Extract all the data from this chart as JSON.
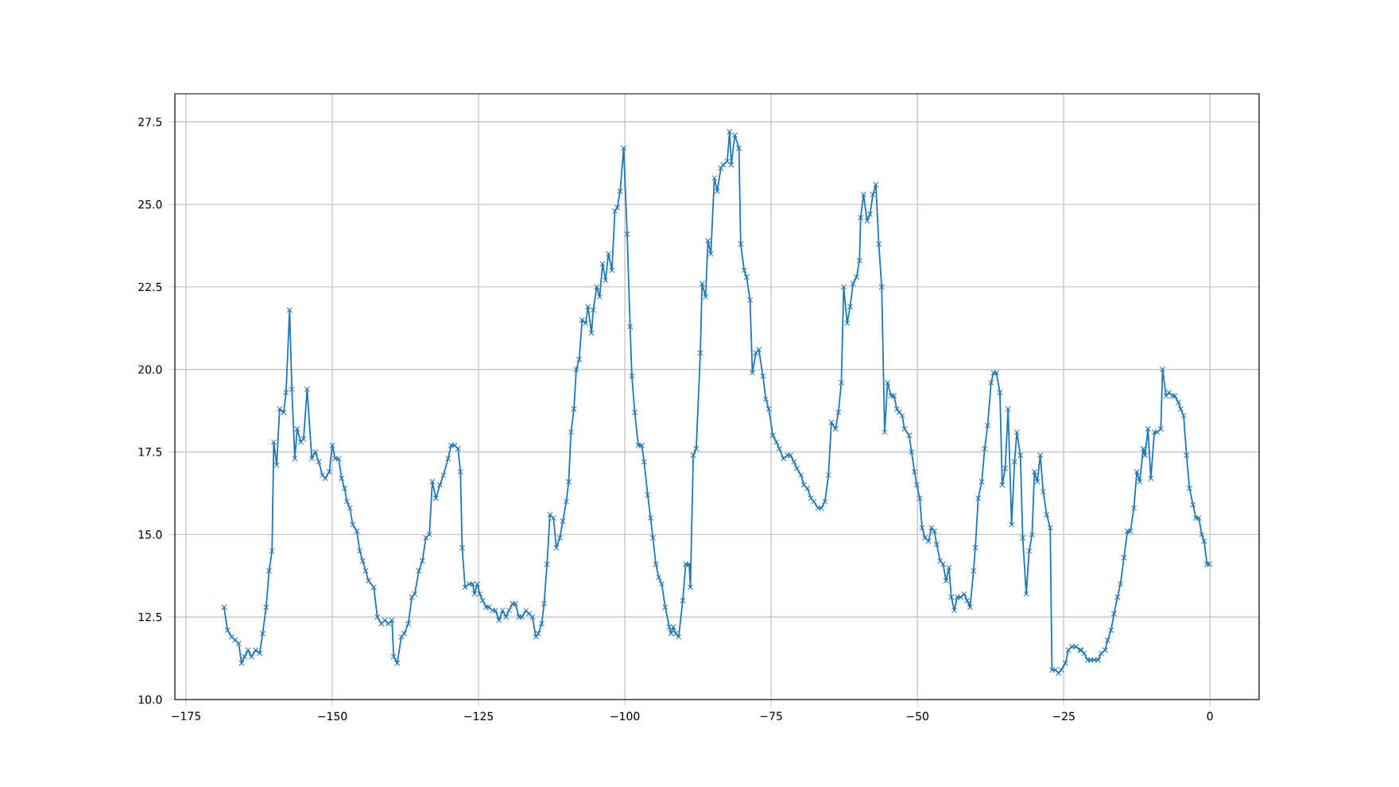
{
  "chart_data": {
    "type": "line",
    "color": "#1f77b4",
    "marker": "cross",
    "line_style": "solid",
    "grid": true,
    "xlim": [
      -176.9,
      8.4
    ],
    "ylim": [
      10,
      28.35
    ],
    "xticks": [
      {
        "value": -175,
        "label": "−175"
      },
      {
        "value": -150,
        "label": "−150"
      },
      {
        "value": -125,
        "label": "−125"
      },
      {
        "value": -100,
        "label": "−100"
      },
      {
        "value": -75,
        "label": "−75"
      },
      {
        "value": -50,
        "label": "−50"
      },
      {
        "value": -25,
        "label": "−25"
      },
      0
    ],
    "yticks": [
      {
        "value": 10,
        "label": "10.0"
      },
      {
        "value": 12.5,
        "label": "12.5"
      },
      {
        "value": 15,
        "label": "15.0"
      },
      {
        "value": 17.5,
        "label": "17.5"
      },
      {
        "value": 20,
        "label": "20.0"
      },
      {
        "value": 22.5,
        "label": "22.5"
      },
      {
        "value": 25,
        "label": "25.0"
      },
      {
        "value": 27.5,
        "label": "27.5"
      }
    ],
    "x": [
      -168.5,
      -167.9,
      -167.2,
      -166.6,
      -166.0,
      -165.5,
      -165.0,
      -164.4,
      -163.8,
      -163.1,
      -162.4,
      -161.9,
      -161.3,
      -160.8,
      -160.3,
      -160.0,
      -159.5,
      -159.0,
      -158.3,
      -157.9,
      -157.3,
      -156.9,
      -156.4,
      -156.0,
      -155.4,
      -154.9,
      -154.3,
      -153.5,
      -152.9,
      -152.3,
      -151.7,
      -151.2,
      -150.5,
      -150.0,
      -149.5,
      -148.9,
      -148.4,
      -147.9,
      -147.5,
      -147.0,
      -146.5,
      -145.8,
      -145.3,
      -144.8,
      -144.3,
      -143.8,
      -142.9,
      -142.3,
      -141.6,
      -141.0,
      -140.4,
      -139.8,
      -139.5,
      -138.9,
      -138.2,
      -137.7,
      -137.0,
      -136.4,
      -135.9,
      -135.2,
      -134.6,
      -134.0,
      -133.4,
      -132.9,
      -132.3,
      -131.6,
      -131.0,
      -130.2,
      -129.7,
      -129.1,
      -128.5,
      -128.1,
      -127.8,
      -127.3,
      -126.6,
      -126.0,
      -125.7,
      -125.2,
      -124.8,
      -124.3,
      -123.7,
      -123.2,
      -122.6,
      -122.1,
      -121.5,
      -120.9,
      -120.3,
      -119.8,
      -119.2,
      -118.7,
      -118.1,
      -117.6,
      -116.9,
      -116.4,
      -115.8,
      -115.2,
      -114.8,
      -114.2,
      -113.8,
      -113.3,
      -112.8,
      -112.2,
      -111.7,
      -111.1,
      -110.6,
      -110.0,
      -109.6,
      -109.2,
      -108.7,
      -108.3,
      -107.8,
      -107.3,
      -106.7,
      -106.3,
      -105.7,
      -105.4,
      -104.8,
      -104.3,
      -103.8,
      -103.3,
      -102.8,
      -102.2,
      -101.7,
      -101.3,
      -100.8,
      -100.2,
      -99.6,
      -99.1,
      -98.8,
      -98.3,
      -97.7,
      -97.1,
      -96.7,
      -96.1,
      -95.6,
      -95.2,
      -94.7,
      -94.2,
      -93.7,
      -93.1,
      -92.4,
      -92.1,
      -91.7,
      -91.3,
      -90.8,
      -90.1,
      -89.6,
      -89.0,
      -88.8,
      -88.3,
      -87.8,
      -87.1,
      -86.8,
      -86.2,
      -85.8,
      -85.3,
      -84.7,
      -84.2,
      -83.6,
      -83.2,
      -82.5,
      -82.1,
      -81.8,
      -81.2,
      -80.5,
      -80.2,
      -79.6,
      -79.2,
      -78.6,
      -78.2,
      -77.6,
      -77.1,
      -76.4,
      -75.9,
      -75.4,
      -74.7,
      -74.1,
      -73.6,
      -72.9,
      -72.2,
      -71.7,
      -71.1,
      -70.6,
      -69.9,
      -69.4,
      -68.8,
      -68.2,
      -67.7,
      -67.0,
      -66.4,
      -65.8,
      -65.2,
      -64.7,
      -64.0,
      -63.5,
      -63.0,
      -62.6,
      -62.0,
      -61.5,
      -61.0,
      -60.4,
      -59.9,
      -59.7,
      -59.2,
      -58.6,
      -58.1,
      -57.6,
      -57.1,
      -56.6,
      -56.1,
      -55.6,
      -55.1,
      -54.5,
      -54.0,
      -53.5,
      -53.1,
      -52.6,
      -52.2,
      -51.4,
      -51.0,
      -50.5,
      -50.1,
      -49.6,
      -49.2,
      -48.7,
      -48.1,
      -47.6,
      -47.1,
      -46.7,
      -46.1,
      -45.6,
      -45.1,
      -44.6,
      -44.2,
      -43.7,
      -43.2,
      -42.6,
      -42.0,
      -41.5,
      -41.0,
      -40.4,
      -40.1,
      -39.6,
      -39.0,
      -38.5,
      -38.0,
      -37.4,
      -37.0,
      -36.5,
      -35.9,
      -35.5,
      -35.0,
      -34.5,
      -33.9,
      -33.4,
      -33.0,
      -32.4,
      -32.0,
      -31.4,
      -30.9,
      -30.4,
      -30.0,
      -29.5,
      -29.0,
      -28.5,
      -27.9,
      -27.3,
      -27.0,
      -26.4,
      -25.9,
      -25.4,
      -24.7,
      -24.2,
      -23.6,
      -22.9,
      -22.2,
      -22.0,
      -21.5,
      -20.9,
      -20.4,
      -19.8,
      -19.1,
      -18.6,
      -17.9,
      -17.5,
      -16.9,
      -16.4,
      -15.8,
      -15.3,
      -14.7,
      -14.1,
      -13.6,
      -13.0,
      -12.5,
      -12.0,
      -11.4,
      -11.1,
      -10.6,
      -10.1,
      -9.5,
      -9.0,
      -8.4,
      -8.1,
      -7.5,
      -7.0,
      -6.4,
      -6.0,
      -5.4,
      -5.0,
      -4.5,
      -4.0,
      -3.5,
      -2.9,
      -2.4,
      -1.9,
      -1.4,
      -1.0,
      -0.5,
      -0.1
    ],
    "values": [
      12.8,
      12.1,
      11.9,
      11.8,
      11.7,
      11.1,
      11.3,
      11.5,
      11.3,
      11.5,
      11.4,
      12.0,
      12.8,
      13.9,
      14.5,
      17.8,
      17.1,
      18.8,
      18.7,
      19.3,
      21.8,
      19.4,
      17.3,
      18.2,
      17.8,
      17.9,
      19.4,
      17.3,
      17.5,
      17.2,
      16.8,
      16.7,
      16.9,
      17.7,
      17.3,
      17.3,
      16.7,
      16.4,
      16.0,
      15.8,
      15.3,
      15.1,
      14.5,
      14.2,
      13.9,
      13.6,
      13.4,
      12.5,
      12.3,
      12.4,
      12.3,
      12.4,
      11.3,
      11.1,
      11.9,
      12.0,
      12.3,
      13.1,
      13.2,
      13.9,
      14.2,
      14.9,
      15.0,
      16.6,
      16.1,
      16.5,
      16.8,
      17.3,
      17.7,
      17.7,
      17.6,
      16.9,
      14.6,
      13.4,
      13.5,
      13.5,
      13.2,
      13.5,
      13.2,
      13.0,
      12.8,
      12.8,
      12.7,
      12.7,
      12.4,
      12.7,
      12.5,
      12.7,
      12.9,
      12.9,
      12.5,
      12.5,
      12.7,
      12.6,
      12.5,
      11.9,
      12.0,
      12.3,
      12.9,
      14.1,
      15.6,
      15.5,
      14.6,
      14.9,
      15.4,
      16.0,
      16.6,
      18.1,
      18.8,
      20.0,
      20.3,
      21.5,
      21.4,
      21.9,
      21.1,
      21.8,
      22.5,
      22.2,
      23.2,
      22.7,
      23.5,
      23.0,
      24.8,
      24.9,
      25.4,
      26.7,
      24.1,
      21.3,
      19.8,
      18.7,
      17.7,
      17.7,
      17.2,
      16.2,
      15.5,
      14.9,
      14.1,
      13.7,
      13.5,
      12.8,
      12.2,
      12.0,
      12.2,
      12.0,
      11.9,
      13.0,
      14.1,
      14.1,
      13.4,
      17.4,
      17.6,
      20.5,
      22.6,
      22.2,
      23.9,
      23.5,
      25.8,
      25.4,
      26.1,
      26.2,
      26.3,
      27.2,
      26.2,
      27.1,
      26.7,
      23.8,
      23.0,
      22.8,
      22.1,
      19.9,
      20.5,
      20.6,
      19.8,
      19.1,
      18.8,
      18.0,
      17.8,
      17.6,
      17.3,
      17.4,
      17.4,
      17.2,
      17.0,
      16.8,
      16.5,
      16.4,
      16.1,
      16.0,
      15.8,
      15.8,
      16.0,
      16.8,
      18.4,
      18.2,
      18.7,
      19.6,
      22.5,
      21.4,
      21.9,
      22.6,
      22.8,
      23.3,
      24.6,
      25.3,
      24.5,
      24.7,
      25.3,
      25.6,
      23.8,
      22.5,
      18.1,
      19.6,
      19.2,
      19.2,
      18.8,
      18.7,
      18.6,
      18.2,
      18.0,
      17.5,
      16.9,
      16.5,
      16.1,
      15.2,
      14.9,
      14.8,
      15.2,
      15.1,
      14.7,
      14.2,
      14.1,
      13.6,
      14.0,
      13.1,
      12.7,
      13.1,
      13.1,
      13.2,
      13.0,
      12.8,
      13.9,
      14.6,
      16.1,
      16.6,
      17.6,
      18.3,
      19.6,
      19.9,
      19.9,
      19.3,
      16.5,
      17.0,
      18.8,
      15.3,
      17.2,
      18.1,
      17.4,
      14.9,
      13.2,
      14.5,
      15.0,
      16.9,
      16.6,
      17.4,
      16.3,
      15.6,
      15.2,
      10.9,
      10.9,
      10.8,
      10.9,
      11.1,
      11.5,
      11.6,
      11.6,
      11.5,
      11.5,
      11.4,
      11.2,
      11.2,
      11.2,
      11.2,
      11.4,
      11.5,
      11.8,
      12.1,
      12.6,
      13.1,
      13.5,
      14.3,
      15.1,
      15.1,
      15.8,
      16.9,
      16.6,
      17.6,
      17.4,
      18.2,
      16.7,
      18.1,
      18.1,
      18.2,
      20.0,
      19.2,
      19.3,
      19.2,
      19.2,
      19.0,
      18.8,
      18.6,
      17.4,
      16.4,
      15.9,
      15.5,
      15.5,
      15.0,
      14.8,
      14.1,
      14.1
    ]
  }
}
